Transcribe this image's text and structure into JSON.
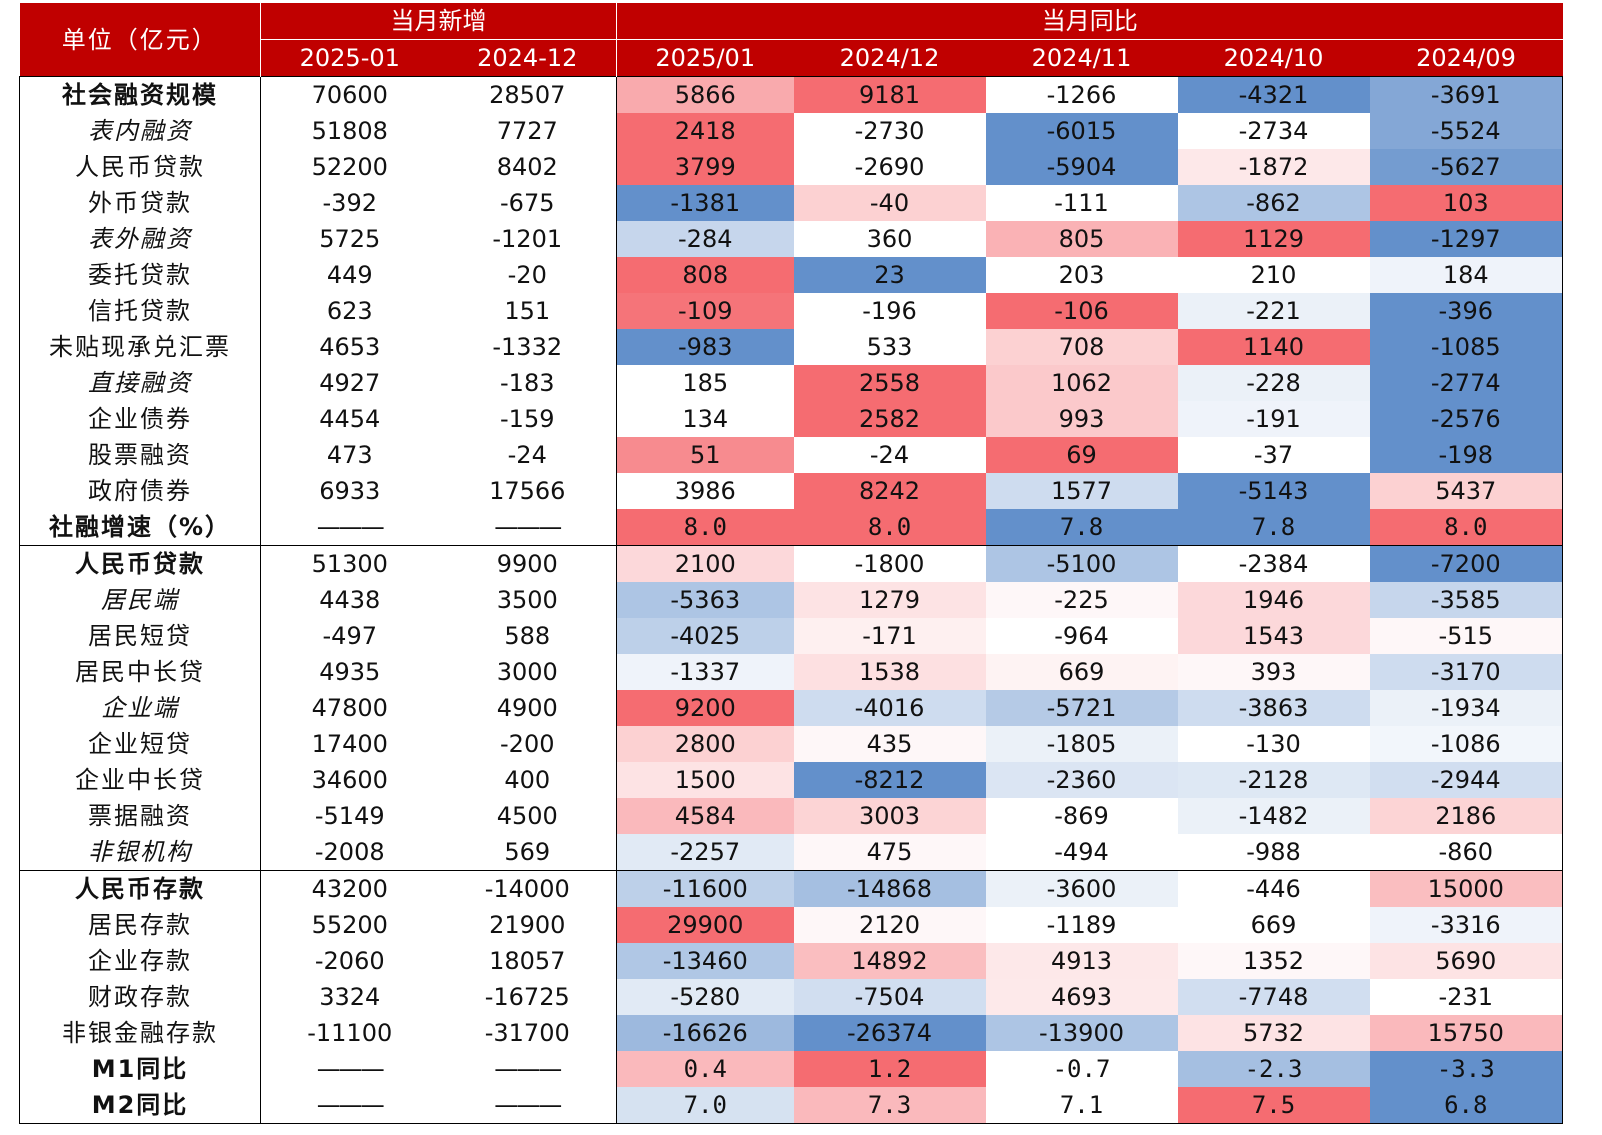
{
  "header": {
    "unit_label": "单位（亿元）",
    "new_group": "当月新增",
    "yoy_group": "当月同比",
    "new_periods": [
      "2025-01",
      "2024-12"
    ],
    "yoy_periods": [
      "2025/01",
      "2024/12",
      "2024/11",
      "2024/10",
      "2024/09"
    ]
  },
  "colors": {
    "header_red": "#c00000",
    "heat_positive_max": "#f4646a",
    "heat_negative_max": "#5b8ac8",
    "heat_zero": "#ffffff"
  },
  "rows": [
    {
      "label": "社会融资规模",
      "new": [
        "70600",
        "28507"
      ],
      "yoy": [
        "5866",
        "9181",
        "-1266",
        "-4321",
        "-3691"
      ],
      "heat": [
        0.55,
        0.95,
        0.0,
        -0.95,
        -0.75
      ]
    },
    {
      "label": "表内融资",
      "new": [
        "51808",
        "7727"
      ],
      "yoy": [
        "2418",
        "-2730",
        "-6015",
        "-2734",
        "-5524"
      ],
      "heat": [
        0.95,
        0.0,
        -0.95,
        0.0,
        -0.75
      ]
    },
    {
      "label": "人民币贷款",
      "new": [
        "52200",
        "8402"
      ],
      "yoy": [
        "3799",
        "-2690",
        "-5904",
        "-1872",
        "-5627"
      ],
      "heat": [
        0.95,
        0.0,
        -0.95,
        0.15,
        -0.85
      ]
    },
    {
      "label": "外币贷款",
      "new": [
        "-392",
        "-675"
      ],
      "yoy": [
        "-1381",
        "-40",
        "-111",
        "-862",
        "103"
      ],
      "heat": [
        -0.95,
        0.3,
        0.0,
        -0.5,
        0.95
      ]
    },
    {
      "label": "表外融资",
      "new": [
        "5725",
        "-1201"
      ],
      "yoy": [
        "-284",
        "360",
        "805",
        "1129",
        "-1297"
      ],
      "heat": [
        -0.35,
        0.0,
        0.5,
        0.95,
        -0.95
      ]
    },
    {
      "label": "委托贷款",
      "new": [
        "449",
        "-20"
      ],
      "yoy": [
        "808",
        "23",
        "203",
        "210",
        "184"
      ],
      "heat": [
        0.95,
        -0.95,
        0.0,
        0.0,
        -0.1
      ]
    },
    {
      "label": "信托贷款",
      "new": [
        "623",
        "151"
      ],
      "yoy": [
        "-109",
        "-196",
        "-106",
        "-221",
        "-396"
      ],
      "heat": [
        0.9,
        0.0,
        0.95,
        -0.12,
        -0.95
      ]
    },
    {
      "label": "未贴现承兑汇票",
      "new": [
        "4653",
        "-1332"
      ],
      "yoy": [
        "-983",
        "533",
        "708",
        "1140",
        "-1085"
      ],
      "heat": [
        -0.95,
        0.0,
        0.3,
        0.95,
        -0.95
      ]
    },
    {
      "label": "直接融资",
      "new": [
        "4927",
        "-183"
      ],
      "yoy": [
        "185",
        "2558",
        "1062",
        "-228",
        "-2774"
      ],
      "heat": [
        0.0,
        0.95,
        0.35,
        -0.12,
        -0.95
      ]
    },
    {
      "label": "企业债券",
      "new": [
        "4454",
        "-159"
      ],
      "yoy": [
        "134",
        "2582",
        "993",
        "-191",
        "-2576"
      ],
      "heat": [
        0.0,
        0.95,
        0.35,
        -0.1,
        -0.95
      ]
    },
    {
      "label": "股票融资",
      "new": [
        "473",
        "-24"
      ],
      "yoy": [
        "51",
        "-24",
        "69",
        "-37",
        "-198"
      ],
      "heat": [
        0.75,
        0.0,
        0.95,
        0.0,
        -0.95
      ]
    },
    {
      "label": "政府债券",
      "new": [
        "6933",
        "17566"
      ],
      "yoy": [
        "3986",
        "8242",
        "1577",
        "-5143",
        "5437"
      ],
      "heat": [
        0.0,
        0.95,
        -0.3,
        -0.95,
        0.3
      ]
    },
    {
      "label": "社融增速（%）",
      "new": [
        "———",
        "———"
      ],
      "yoy": [
        "8.0",
        "8.0",
        "7.8",
        "7.8",
        "8.0"
      ],
      "heat": [
        0.95,
        0.95,
        -0.95,
        -0.95,
        0.95
      ]
    },
    {
      "label": "人民币贷款",
      "new": [
        "51300",
        "9900"
      ],
      "yoy": [
        "2100",
        "-1800",
        "-5100",
        "-2384",
        "-7200"
      ],
      "heat": [
        0.25,
        0.0,
        -0.5,
        0.0,
        -0.95
      ]
    },
    {
      "label": "居民端",
      "new": [
        "4438",
        "3500"
      ],
      "yoy": [
        "-5363",
        "1279",
        "-225",
        "1946",
        "-3585"
      ],
      "heat": [
        -0.5,
        0.18,
        0.05,
        0.25,
        -0.35
      ]
    },
    {
      "label": "居民短贷",
      "new": [
        "-497",
        "588"
      ],
      "yoy": [
        "-4025",
        "-171",
        "-964",
        "1543",
        "-515"
      ],
      "heat": [
        -0.4,
        0.1,
        0.0,
        0.25,
        0.05
      ]
    },
    {
      "label": "居民中长贷",
      "new": [
        "4935",
        "3000"
      ],
      "yoy": [
        "-1337",
        "1538",
        "669",
        "393",
        "-3170"
      ],
      "heat": [
        -0.1,
        0.2,
        0.08,
        0.05,
        -0.3
      ]
    },
    {
      "label": "企业端",
      "new": [
        "47800",
        "4900"
      ],
      "yoy": [
        "9200",
        "-4016",
        "-5721",
        "-3863",
        "-1934"
      ],
      "heat": [
        0.95,
        -0.3,
        -0.45,
        -0.3,
        -0.12
      ]
    },
    {
      "label": "企业短贷",
      "new": [
        "17400",
        "-200"
      ],
      "yoy": [
        "2800",
        "435",
        "-1805",
        "-130",
        "-1086"
      ],
      "heat": [
        0.3,
        0.05,
        -0.12,
        0.0,
        -0.08
      ]
    },
    {
      "label": "企业中长贷",
      "new": [
        "34600",
        "400"
      ],
      "yoy": [
        "1500",
        "-8212",
        "-2360",
        "-2128",
        "-2944"
      ],
      "heat": [
        0.18,
        -0.95,
        -0.22,
        -0.2,
        -0.28
      ]
    },
    {
      "label": "票据融资",
      "new": [
        "-5149",
        "4500"
      ],
      "yoy": [
        "4584",
        "3003",
        "-869",
        "-1482",
        "2186"
      ],
      "heat": [
        0.45,
        0.28,
        0.0,
        -0.12,
        0.28
      ]
    },
    {
      "label": "非银机构",
      "new": [
        "-2008",
        "569"
      ],
      "yoy": [
        "-2257",
        "475",
        "-494",
        "-988",
        "-860"
      ],
      "heat": [
        -0.18,
        0.05,
        0.0,
        0.0,
        0.0
      ]
    },
    {
      "label": "人民币存款",
      "new": [
        "43200",
        "-14000"
      ],
      "yoy": [
        "-11600",
        "-14868",
        "-3600",
        "-446",
        "15000"
      ],
      "heat": [
        -0.4,
        -0.55,
        -0.12,
        0.0,
        0.42
      ]
    },
    {
      "label": "居民存款",
      "new": [
        "55200",
        "21900"
      ],
      "yoy": [
        "29900",
        "2120",
        "-1189",
        "669",
        "-3316"
      ],
      "heat": [
        0.95,
        0.05,
        0.0,
        0.0,
        -0.1
      ]
    },
    {
      "label": "企业存款",
      "new": [
        "-2060",
        "18057"
      ],
      "yoy": [
        "-13460",
        "14892",
        "4913",
        "1352",
        "5690"
      ],
      "heat": [
        -0.48,
        0.42,
        0.15,
        0.05,
        0.18
      ]
    },
    {
      "label": "财政存款",
      "new": [
        "3324",
        "-16725"
      ],
      "yoy": [
        "-5280",
        "-7504",
        "4693",
        "-7748",
        "-231"
      ],
      "heat": [
        -0.18,
        -0.28,
        0.14,
        -0.28,
        0.0
      ]
    },
    {
      "label": "非银金融存款",
      "new": [
        "-11100",
        "-31700"
      ],
      "yoy": [
        "-16626",
        "-26374",
        "-13900",
        "5732",
        "15750"
      ],
      "heat": [
        -0.6,
        -0.95,
        -0.5,
        0.18,
        0.45
      ]
    },
    {
      "label": "M1同比",
      "new": [
        "———",
        "———"
      ],
      "yoy": [
        "0.4",
        "1.2",
        "-0.7",
        "-2.3",
        "-3.3"
      ],
      "heat": [
        0.45,
        0.95,
        0.0,
        -0.55,
        -0.95
      ]
    },
    {
      "label": "M2同比",
      "new": [
        "———",
        "———"
      ],
      "yoy": [
        "7.0",
        "7.3",
        "7.1",
        "7.5",
        "6.8"
      ],
      "heat": [
        -0.25,
        0.45,
        0.0,
        0.95,
        -0.95
      ]
    }
  ]
}
